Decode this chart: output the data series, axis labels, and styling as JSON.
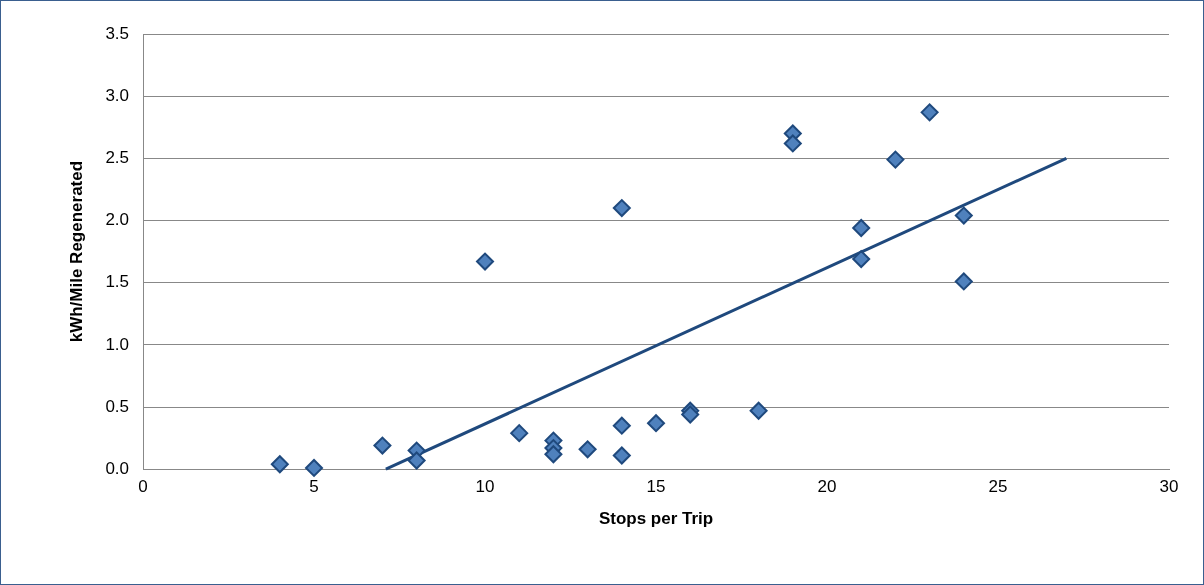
{
  "chart_data": {
    "type": "scatter",
    "xlabel": "Stops per Trip",
    "ylabel": "kWh/Mile Regenerated",
    "xlim": [
      0,
      30
    ],
    "xticks": [
      0,
      5,
      10,
      15,
      20,
      25,
      30
    ],
    "ylim": [
      0,
      3.5
    ],
    "yticks": [
      {
        "value": 0,
        "label": "0.0"
      },
      {
        "value": 0.5,
        "label": "0.5"
      },
      {
        "value": 1,
        "label": "1.0"
      },
      {
        "value": 1.5,
        "label": "1.5"
      },
      {
        "value": 2,
        "label": "2.0"
      },
      {
        "value": 2.5,
        "label": "2.5"
      },
      {
        "value": 3,
        "label": "3.0"
      },
      {
        "value": 3.5,
        "label": "3.5"
      }
    ],
    "grid": "y",
    "series": [
      {
        "type": "scatter",
        "marker": "diamond",
        "color": "#4f81bd",
        "x": [
          4,
          5,
          7,
          8,
          8,
          10,
          11,
          12,
          12,
          12,
          13,
          14,
          14,
          14,
          15,
          16,
          16,
          18,
          19,
          19,
          21,
          21,
          22,
          23,
          24,
          24
        ],
        "values": [
          0.04,
          0.01,
          0.19,
          0.15,
          0.07,
          1.67,
          0.29,
          0.23,
          0.17,
          0.12,
          0.16,
          2.1,
          0.35,
          0.11,
          0.37,
          0.47,
          0.44,
          0.47,
          2.7,
          2.62,
          1.94,
          1.69,
          2.49,
          2.87,
          2.04,
          1.51
        ]
      },
      {
        "type": "line",
        "marker": "none",
        "line_style": "solid",
        "color": "#1f497d",
        "x": [
          7.1,
          27
        ],
        "values": [
          0,
          2.5
        ]
      }
    ]
  }
}
